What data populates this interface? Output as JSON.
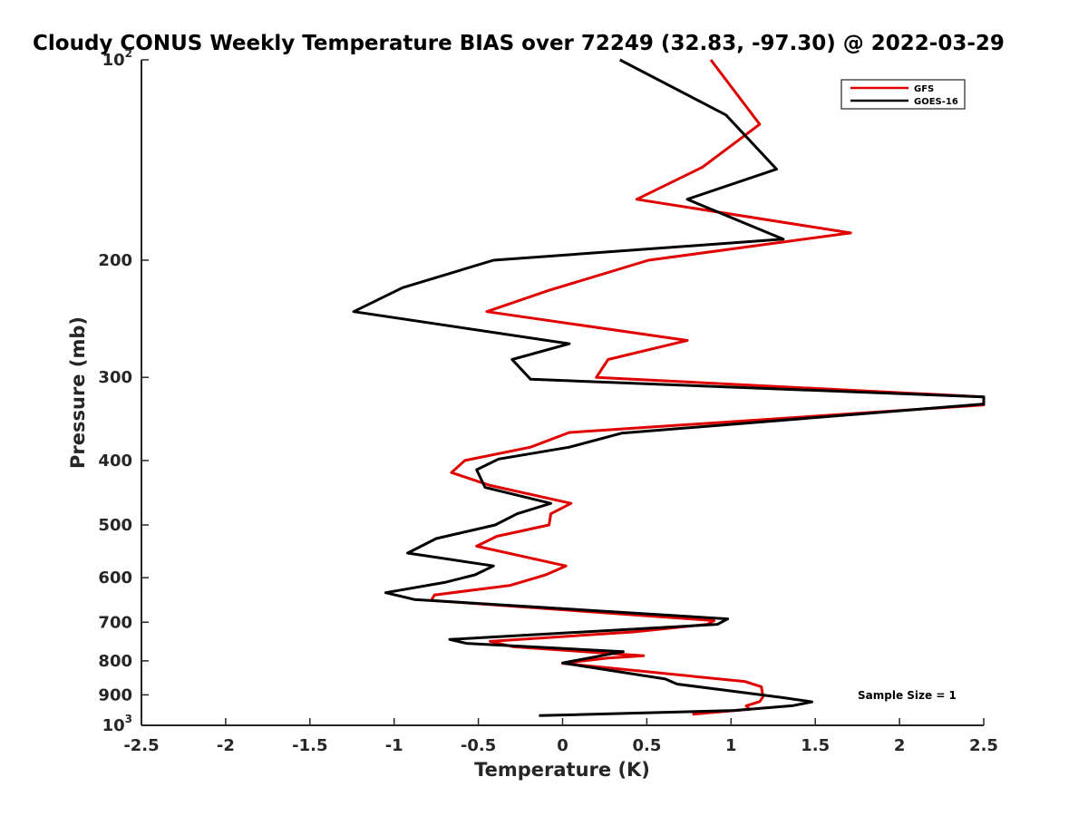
{
  "chart_data": {
    "type": "line",
    "title": "Cloudy CONUS Weekly Temperature BIAS over 72249 (32.83, -97.30) @ 2022-03-29",
    "xlabel": "Temperature (K)",
    "ylabel": "Pressure (mb)",
    "xlim": [
      -2.5,
      2.5
    ],
    "ylim": [
      100,
      1000
    ],
    "y_scale": "log",
    "y_reversed": true,
    "x_ticks": [
      "-2.5",
      "-2",
      "-1.5",
      "-1",
      "-0.5",
      "0",
      "0.5",
      "1",
      "1.5",
      "2",
      "2.5"
    ],
    "y_ticks": [
      {
        "value": 100,
        "base": "10",
        "exp": "2"
      },
      {
        "value": 200,
        "label": "200"
      },
      {
        "value": 300,
        "label": "300"
      },
      {
        "value": 400,
        "label": "400"
      },
      {
        "value": 500,
        "label": "500"
      },
      {
        "value": 600,
        "label": "600"
      },
      {
        "value": 700,
        "label": "700"
      },
      {
        "value": 800,
        "label": "800"
      },
      {
        "value": 900,
        "label": "900"
      },
      {
        "value": 1000,
        "base": "10",
        "exp": "3"
      }
    ],
    "grid": false,
    "legend_position": "top-right",
    "annotation": "Sample Size = 1",
    "series": [
      {
        "name": "GFS",
        "color": "#e00000",
        "points": [
          [
            0.88,
            100
          ],
          [
            1.17,
            125
          ],
          [
            0.83,
            145
          ],
          [
            0.44,
            162
          ],
          [
            1.71,
            182
          ],
          [
            0.51,
            200
          ],
          [
            -0.08,
            222
          ],
          [
            -0.45,
            239
          ],
          [
            0.74,
            264
          ],
          [
            0.27,
            282
          ],
          [
            0.2,
            300
          ],
          [
            2.5,
            321
          ],
          [
            2.5,
            330
          ],
          [
            0.04,
            363
          ],
          [
            -0.19,
            382
          ],
          [
            -0.58,
            400
          ],
          [
            -0.66,
            417
          ],
          [
            -0.43,
            436
          ],
          [
            0.05,
            464
          ],
          [
            -0.07,
            481
          ],
          [
            -0.08,
            500
          ],
          [
            -0.39,
            520
          ],
          [
            -0.51,
            538
          ],
          [
            0.02,
            576
          ],
          [
            -0.1,
            594
          ],
          [
            -0.31,
            616
          ],
          [
            -0.76,
            637
          ],
          [
            -0.78,
            649
          ],
          [
            0.9,
            696
          ],
          [
            0.86,
            705
          ],
          [
            0.42,
            724
          ],
          [
            -0.43,
            748
          ],
          [
            -0.29,
            762
          ],
          [
            0.48,
            786
          ],
          [
            0.27,
            792
          ],
          [
            0.0,
            807
          ],
          [
            1.08,
            859
          ],
          [
            1.18,
            875
          ],
          [
            1.19,
            906
          ],
          [
            1.17,
            921
          ],
          [
            1.09,
            935
          ],
          [
            1.11,
            946
          ],
          [
            0.77,
            962
          ]
        ]
      },
      {
        "name": "GOES-16",
        "color": "#000000",
        "points": [
          [
            0.34,
            100
          ],
          [
            0.97,
            121
          ],
          [
            1.27,
            146
          ],
          [
            0.74,
            162
          ],
          [
            1.31,
            186
          ],
          [
            -0.41,
            200
          ],
          [
            -0.95,
            220
          ],
          [
            -1.24,
            239
          ],
          [
            0.04,
            267
          ],
          [
            -0.3,
            282
          ],
          [
            -0.19,
            302
          ],
          [
            2.5,
            321
          ],
          [
            2.5,
            329
          ],
          [
            0.35,
            364
          ],
          [
            0.04,
            382
          ],
          [
            -0.38,
            398
          ],
          [
            -0.51,
            413
          ],
          [
            -0.46,
            439
          ],
          [
            -0.07,
            464
          ],
          [
            -0.27,
            481
          ],
          [
            -0.4,
            500
          ],
          [
            -0.75,
            524
          ],
          [
            -0.92,
            551
          ],
          [
            -0.41,
            576
          ],
          [
            -0.52,
            594
          ],
          [
            -0.7,
            610
          ],
          [
            -1.05,
            632
          ],
          [
            -0.88,
            647
          ],
          [
            0.98,
            692
          ],
          [
            0.92,
            705
          ],
          [
            -0.67,
            743
          ],
          [
            -0.57,
            753
          ],
          [
            0.36,
            775
          ],
          [
            0.0,
            806
          ],
          [
            0.61,
            852
          ],
          [
            0.68,
            867
          ],
          [
            1.3,
            908
          ],
          [
            1.48,
            922
          ],
          [
            1.37,
            934
          ],
          [
            1.02,
            950
          ],
          [
            -0.14,
            967
          ]
        ]
      }
    ]
  }
}
